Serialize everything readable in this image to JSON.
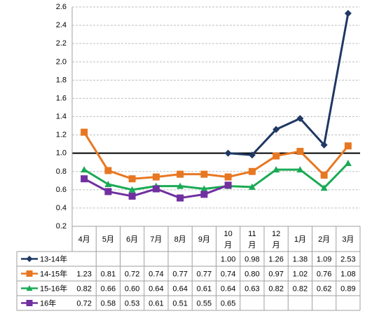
{
  "chart_data": {
    "type": "line",
    "categories": [
      "4月",
      "5月",
      "6月",
      "7月",
      "8月",
      "9月",
      "10月",
      "11月",
      "12月",
      "1月",
      "2月",
      "3月"
    ],
    "category_lines": [
      [
        "4月"
      ],
      [
        "5月"
      ],
      [
        "6月"
      ],
      [
        "7月"
      ],
      [
        "8月"
      ],
      [
        "9月"
      ],
      [
        "10",
        "月"
      ],
      [
        "11",
        "月"
      ],
      [
        "12",
        "月"
      ],
      [
        "1月"
      ],
      [
        "2月"
      ],
      [
        "3月"
      ]
    ],
    "y_ticks": [
      "0.2",
      "0.4",
      "0.6",
      "0.8",
      "1.0",
      "1.2",
      "1.4",
      "1.6",
      "1.8",
      "2.0",
      "2.2",
      "2.4",
      "2.6"
    ],
    "ylim": [
      0.2,
      2.6
    ],
    "reference_line": 1.0,
    "grid": "horizontal dashed",
    "legend": "bottom data table",
    "series": [
      {
        "name": "13-14年",
        "color": "#1f3864",
        "marker": "diamond",
        "values": [
          null,
          null,
          null,
          null,
          null,
          null,
          1.0,
          0.98,
          1.26,
          1.38,
          1.09,
          2.53
        ],
        "labels": [
          "",
          "",
          "",
          "",
          "",
          "",
          "1.00",
          "0.98",
          "1.26",
          "1.38",
          "1.09",
          "2.53"
        ]
      },
      {
        "name": "14-15年",
        "color": "#e87722",
        "marker": "square",
        "values": [
          1.23,
          0.81,
          0.72,
          0.74,
          0.77,
          0.77,
          0.74,
          0.8,
          0.97,
          1.02,
          0.76,
          1.08
        ],
        "labels": [
          "1.23",
          "0.81",
          "0.72",
          "0.74",
          "0.77",
          "0.77",
          "0.74",
          "0.80",
          "0.97",
          "1.02",
          "0.76",
          "1.08"
        ]
      },
      {
        "name": "15-16年",
        "color": "#1aaa55",
        "marker": "triangle",
        "values": [
          0.82,
          0.66,
          0.6,
          0.64,
          0.64,
          0.61,
          0.64,
          0.63,
          0.82,
          0.82,
          0.62,
          0.89
        ],
        "labels": [
          "0.82",
          "0.66",
          "0.60",
          "0.64",
          "0.64",
          "0.61",
          "0.64",
          "0.63",
          "0.82",
          "0.82",
          "0.62",
          "0.89"
        ]
      },
      {
        "name": "16年",
        "color": "#7030a0",
        "marker": "square",
        "values": [
          0.72,
          0.58,
          0.53,
          0.61,
          0.51,
          0.55,
          0.65,
          null,
          null,
          null,
          null,
          null
        ],
        "labels": [
          "0.72",
          "0.58",
          "0.53",
          "0.61",
          "0.51",
          "0.55",
          "0.65",
          "",
          "",
          "",
          "",
          ""
        ]
      }
    ]
  }
}
